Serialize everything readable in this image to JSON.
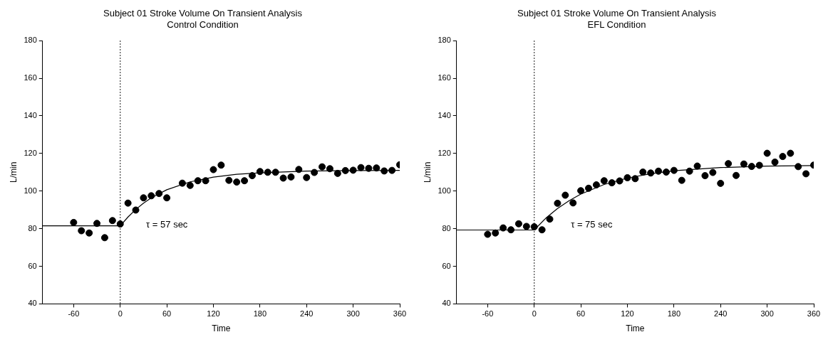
{
  "chart_data": [
    {
      "type": "scatter",
      "title": "Subject 01 Stroke Volume On Transient Analysis",
      "subtitle": "Control Condition",
      "xlabel": "Time",
      "ylabel": "L/min",
      "xlim": [
        -100,
        360
      ],
      "xticks": [
        -60,
        0,
        60,
        120,
        180,
        240,
        300,
        360
      ],
      "ylim": [
        40,
        180
      ],
      "yticks": [
        40,
        60,
        80,
        100,
        120,
        140,
        160,
        180
      ],
      "grid": false,
      "legend": false,
      "annotations": [
        "τ = 57 sec"
      ],
      "ref_lines": [
        {
          "axis": "x",
          "value": 0,
          "color": "#000000",
          "line_style": "dotted"
        }
      ],
      "series": [
        {
          "marker": "circle",
          "color": "#000000",
          "x": [
            -60,
            -50,
            -40,
            -30,
            -20,
            -10,
            0,
            10,
            20,
            30,
            40,
            50,
            60,
            80,
            90,
            100,
            110,
            120,
            130,
            140,
            150,
            160,
            170,
            180,
            190,
            200,
            210,
            220,
            230,
            240,
            250,
            260,
            270,
            280,
            290,
            300,
            310,
            320,
            330,
            340,
            350,
            360
          ],
          "values": [
            83.3,
            78.9,
            77.7,
            82.8,
            75.2,
            84.3,
            82.5,
            93.6,
            89.9,
            96.4,
            97.5,
            98.7,
            96.4,
            104.2,
            103.0,
            105.5,
            105.5,
            111.4,
            113.8,
            105.7,
            104.8,
            105.5,
            108.2,
            110.4,
            110.0,
            110.0,
            106.9,
            107.5,
            111.5,
            107.2,
            109.9,
            112.9,
            111.9,
            109.4,
            110.9,
            111.1,
            112.5,
            112.1,
            112.3,
            110.7,
            111.0,
            114.0
          ]
        },
        {
          "type": "line",
          "color": "#000000",
          "x": [
            -100,
            0,
            10,
            20,
            30,
            40,
            60,
            90,
            120,
            150,
            180,
            240,
            300,
            360
          ],
          "values": [
            81.5,
            81.5,
            86.2,
            90.2,
            93.6,
            96.4,
            100.7,
            104.9,
            107.4,
            108.9,
            109.7,
            110.6,
            110.9,
            111.0
          ]
        }
      ]
    },
    {
      "type": "scatter",
      "title": "Subject 01 Stroke Volume On Transient Analysis",
      "subtitle": "EFL Condition",
      "xlabel": "Time",
      "ylabel": "L/min",
      "xlim": [
        -100,
        360
      ],
      "xticks": [
        -60,
        0,
        60,
        120,
        180,
        240,
        300,
        360
      ],
      "ylim": [
        40,
        180
      ],
      "yticks": [
        40,
        60,
        80,
        100,
        120,
        140,
        160,
        180
      ],
      "grid": false,
      "legend": false,
      "annotations": [
        "τ = 75 sec"
      ],
      "ref_lines": [
        {
          "axis": "x",
          "value": 0,
          "color": "#000000",
          "line_style": "dotted"
        }
      ],
      "series": [
        {
          "marker": "circle",
          "color": "#000000",
          "x": [
            -60,
            -50,
            -40,
            -30,
            -20,
            -10,
            0,
            10,
            20,
            30,
            40,
            50,
            60,
            70,
            80,
            90,
            100,
            110,
            120,
            130,
            140,
            150,
            160,
            170,
            180,
            190,
            200,
            210,
            220,
            230,
            240,
            250,
            260,
            270,
            280,
            290,
            300,
            310,
            320,
            330,
            340,
            350,
            360
          ],
          "values": [
            77.0,
            77.7,
            80.4,
            79.4,
            82.6,
            81.2,
            81.0,
            79.4,
            85.1,
            93.5,
            97.8,
            93.7,
            100.2,
            101.5,
            103.3,
            105.5,
            104.4,
            105.4,
            107.1,
            106.6,
            110.1,
            109.6,
            110.6,
            110.1,
            111.0,
            105.7,
            110.6,
            113.3,
            108.2,
            109.9,
            104.1,
            114.6,
            108.3,
            114.4,
            113.1,
            113.7,
            120.1,
            115.4,
            118.4,
            120.1,
            113.0,
            109.2,
            113.8
          ]
        },
        {
          "type": "line",
          "color": "#000000",
          "x": [
            -100,
            0,
            15,
            30,
            45,
            60,
            90,
            120,
            150,
            180,
            240,
            300,
            360
          ],
          "values": [
            79.3,
            79.3,
            85.6,
            90.7,
            94.9,
            98.4,
            103.5,
            106.9,
            109.2,
            110.8,
            112.5,
            113.3,
            113.6
          ]
        }
      ]
    }
  ]
}
